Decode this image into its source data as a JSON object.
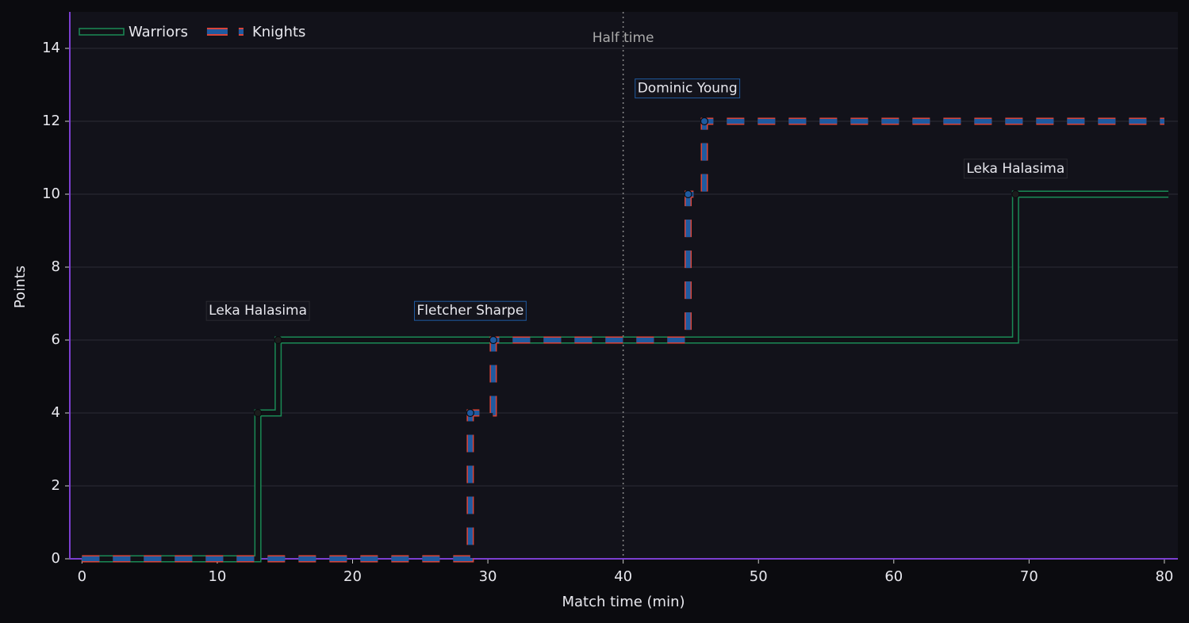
{
  "chart_data": {
    "type": "step",
    "step": "post",
    "xlabel": "Match time (min)",
    "ylabel": "Points",
    "xlim": [
      -0.9,
      81
    ],
    "ylim": [
      0,
      15
    ],
    "xticks": [
      0,
      10,
      20,
      30,
      40,
      50,
      60,
      70,
      80
    ],
    "yticks": [
      0,
      2,
      4,
      6,
      8,
      10,
      12,
      14
    ],
    "grid": true,
    "legend": "upper left",
    "series": [
      {
        "name": "Warriors",
        "color": "#1a8a55",
        "x": [
          0,
          13,
          14.5,
          69,
          80.3
        ],
        "values": [
          0,
          4,
          6,
          10,
          10
        ],
        "markers": [
          1,
          2,
          3
        ]
      },
      {
        "name": "Knights",
        "color": "#1f5aa0",
        "edge": "#d9453a",
        "x": [
          0,
          28.7,
          30.4,
          44.8,
          46,
          80
        ],
        "values": [
          0,
          4,
          6,
          10,
          12,
          12
        ],
        "markers": [
          1,
          2,
          3,
          4
        ]
      }
    ],
    "vline": {
      "x": 40,
      "label": "Half time"
    },
    "annotations": [
      {
        "text": "Leka Halasima",
        "x": 13,
        "y": 6.8,
        "series": 0
      },
      {
        "text": "Fletcher Sharpe",
        "x": 28.7,
        "y": 6.8,
        "series": 1
      },
      {
        "text": "Dominic Young",
        "x": 44.75,
        "y": 12.9,
        "series": 1
      },
      {
        "text": "Leka Halasima",
        "x": 69,
        "y": 10.7,
        "series": 0
      }
    ]
  }
}
